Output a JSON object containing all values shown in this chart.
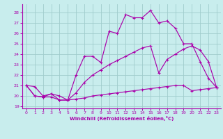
{
  "xlabel": "Windchill (Refroidissement éolien,°C)",
  "xlim": [
    -0.5,
    23.5
  ],
  "ylim": [
    18.8,
    28.8
  ],
  "yticks": [
    19,
    20,
    21,
    22,
    23,
    24,
    25,
    26,
    27,
    28
  ],
  "xticks": [
    0,
    1,
    2,
    3,
    4,
    5,
    6,
    7,
    8,
    9,
    10,
    11,
    12,
    13,
    14,
    15,
    16,
    17,
    18,
    19,
    20,
    21,
    22,
    23
  ],
  "bg_color": "#c8eded",
  "line_color": "#aa00aa",
  "grid_color": "#a0cccc",
  "line1_y": [
    21.0,
    20.9,
    20.0,
    20.2,
    19.6,
    19.6,
    22.0,
    23.8,
    23.8,
    23.2,
    26.2,
    26.0,
    27.8,
    27.5,
    27.5,
    28.2,
    27.0,
    27.2,
    26.5,
    25.0,
    25.0,
    23.3,
    21.7,
    20.8
  ],
  "line2_y": [
    21.0,
    20.0,
    19.9,
    20.2,
    20.0,
    19.6,
    20.3,
    21.3,
    22.0,
    22.5,
    23.0,
    23.4,
    23.8,
    24.2,
    24.6,
    24.8,
    22.2,
    23.5,
    24.0,
    24.5,
    24.8,
    24.4,
    23.3,
    20.8
  ],
  "line3_y": [
    21.0,
    20.0,
    19.9,
    19.9,
    19.6,
    19.6,
    19.7,
    19.8,
    20.0,
    20.1,
    20.2,
    20.3,
    20.4,
    20.5,
    20.6,
    20.7,
    20.8,
    20.9,
    21.0,
    21.0,
    20.5,
    20.6,
    20.7,
    20.8
  ]
}
